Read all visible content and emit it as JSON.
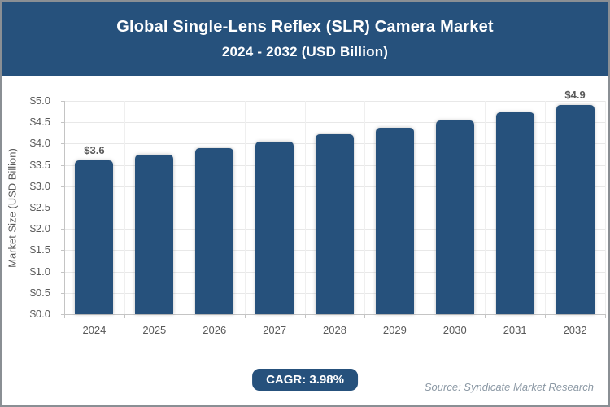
{
  "header": {
    "title_line1": "Global Single-Lens Reflex (SLR) Camera Market",
    "title_line2": "2024 - 2032 (USD Billion)"
  },
  "chart_data": {
    "type": "bar",
    "title": "Global Single-Lens Reflex (SLR) Camera Market",
    "subtitle": "2024 - 2032 (USD Billion)",
    "categories": [
      "2024",
      "2025",
      "2026",
      "2027",
      "2028",
      "2029",
      "2030",
      "2031",
      "2032"
    ],
    "values": [
      3.6,
      3.74,
      3.89,
      4.05,
      4.21,
      4.38,
      4.55,
      4.73,
      4.9
    ],
    "bar_value_labels": [
      "$3.6",
      "",
      "",
      "",
      "",
      "",
      "",
      "",
      "$4.9"
    ],
    "xlabel": "",
    "ylabel": "Market Size (USD Billion)",
    "ylim": [
      0,
      5
    ],
    "ytick_step": 0.5,
    "ytick_prefix": "$",
    "grid": true,
    "legend_position": "none",
    "bar_color": "#26517C"
  },
  "footer": {
    "cagr_label": "CAGR: 3.98%",
    "source": "Source: Syndicate Market Research"
  },
  "colors": {
    "banner_bg": "#26517C",
    "banner_text": "#FFFFFF",
    "bar": "#26517C",
    "axis_text": "#595959",
    "gridline_h": "#E8E8E8",
    "gridline_v": "#EFEFEF",
    "axis_line": "#C4C4C4",
    "badge_bg": "#26517C",
    "badge_text": "#FFFFFF",
    "source_text": "#8C99A5"
  }
}
